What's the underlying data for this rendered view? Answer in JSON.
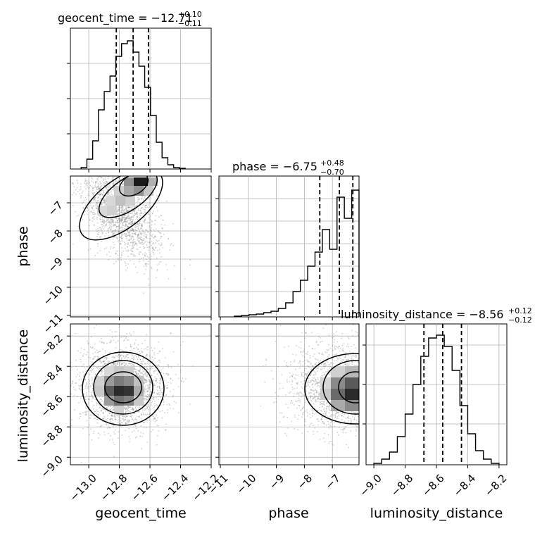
{
  "chart_data": [
    {
      "type": "histogram",
      "panel": "diag-0",
      "title_main": "geocent_time = −12.71",
      "title_sup": "+0.10",
      "title_sub": "−0.11",
      "xlim": [
        -13.12,
        -12.2
      ],
      "quantiles": [
        -12.82,
        -12.71,
        -12.61
      ],
      "bin_values": [
        0.01,
        0.07,
        0.2,
        0.42,
        0.55,
        0.66,
        0.8,
        0.89,
        0.91,
        0.83,
        0.73,
        0.58,
        0.38,
        0.19,
        0.08,
        0.03,
        0.01,
        0.005
      ],
      "bin_range": [
        -13.05,
        -12.37
      ]
    },
    {
      "type": "scatter-contour",
      "panel": "phase-vs-geocent_time",
      "ylabel": "phase",
      "xlim": [
        -13.12,
        -12.2
      ],
      "ylim": [
        -11.05,
        -6.05
      ],
      "yticks": [
        "−7",
        "−8",
        "−9",
        "−10",
        "−11"
      ],
      "ytick_values": [
        -7,
        -8,
        -9,
        -10,
        -11
      ]
    },
    {
      "type": "histogram",
      "panel": "diag-1",
      "title_main": "phase = −6.75",
      "title_sup": "+0.48",
      "title_sub": "−0.70",
      "xlim": [
        -11.05,
        -6.05
      ],
      "quantiles": [
        -7.45,
        -6.75,
        -6.27
      ],
      "bin_values": [
        0.005,
        0.01,
        0.015,
        0.02,
        0.03,
        0.04,
        0.06,
        0.1,
        0.18,
        0.26,
        0.36,
        0.46,
        0.62,
        0.48,
        0.85,
        0.7,
        0.9
      ],
      "bin_range": [
        -10.5,
        -6.05
      ]
    },
    {
      "type": "scatter-contour",
      "panel": "luminosity_distance-vs-geocent_time",
      "xlabel": "geocent_time",
      "ylabel": "luminosity_distance",
      "xlim": [
        -13.12,
        -12.2
      ],
      "ylim": [
        -9.05,
        -8.12
      ],
      "xticks": [
        "−13.0",
        "−12.8",
        "−12.6",
        "−12.4",
        "−12.2"
      ],
      "xtick_values": [
        -13.0,
        -12.8,
        -12.6,
        -12.4,
        -12.2
      ],
      "yticks": [
        "−8.2",
        "−8.4",
        "−8.6",
        "−8.8",
        "−9.0"
      ],
      "ytick_values": [
        -8.2,
        -8.4,
        -8.6,
        -8.8,
        -9.0
      ]
    },
    {
      "type": "scatter-contour",
      "panel": "luminosity_distance-vs-phase",
      "xlabel": "phase",
      "xlim": [
        -11.05,
        -6.05
      ],
      "ylim": [
        -9.05,
        -8.12
      ],
      "xticks": [
        "−11",
        "−10",
        "−9",
        "−8",
        "−7"
      ],
      "xtick_values": [
        -11,
        -10,
        -9,
        -8,
        -7
      ]
    },
    {
      "type": "histogram",
      "panel": "diag-2",
      "title_main": "luminosity_distance = −8.56",
      "title_sup": "+0.12",
      "title_sub": "−0.12",
      "xlabel": "luminosity_distance",
      "xlim": [
        -9.05,
        -8.15
      ],
      "xticks": [
        "−9.0",
        "−8.8",
        "−8.6",
        "−8.4",
        "−8.2"
      ],
      "xtick_values": [
        -9.0,
        -8.8,
        -8.6,
        -8.4,
        -8.2
      ],
      "quantiles": [
        -8.68,
        -8.56,
        -8.44
      ],
      "bin_values": [
        0.01,
        0.04,
        0.09,
        0.2,
        0.36,
        0.57,
        0.77,
        0.9,
        0.92,
        0.84,
        0.67,
        0.42,
        0.22,
        0.1,
        0.04,
        0.01
      ],
      "bin_range": [
        -9.0,
        -8.2
      ]
    }
  ]
}
